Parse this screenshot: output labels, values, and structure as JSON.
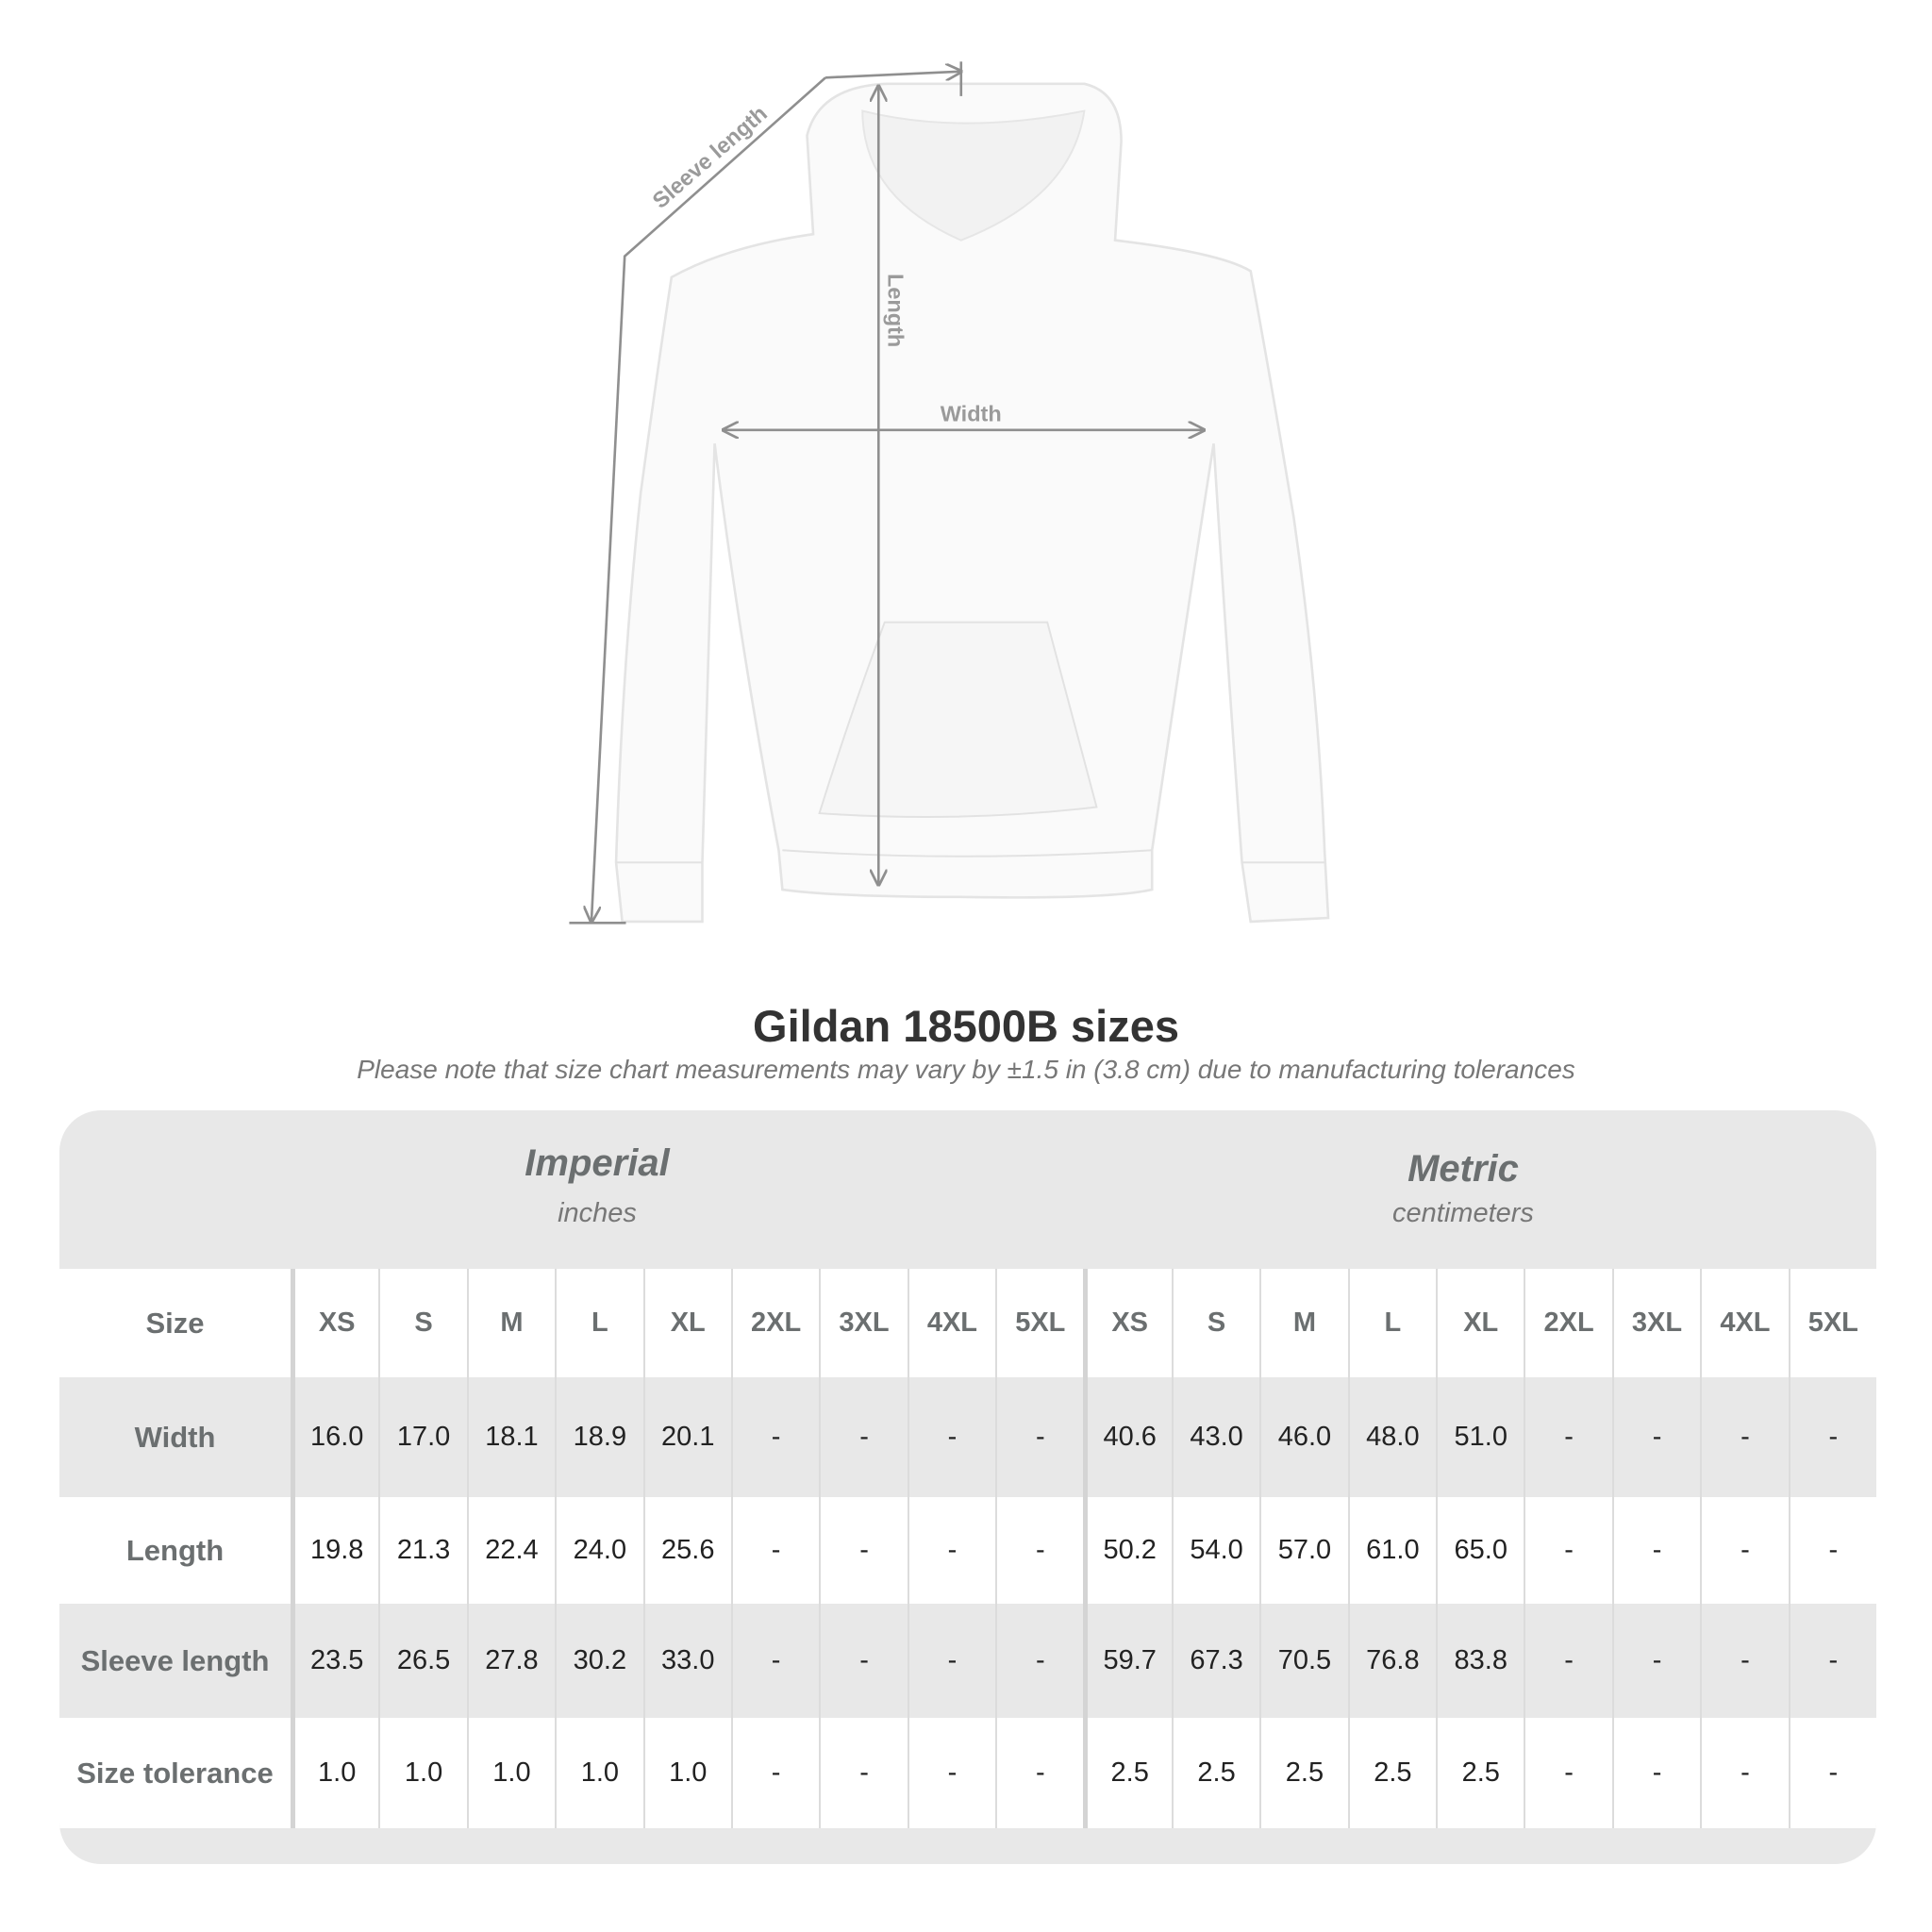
{
  "diagram": {
    "labels": {
      "sleeve_length": "Sleeve length",
      "length": "Length",
      "width": "Width"
    }
  },
  "title": "Gildan 18500B sizes",
  "subtitle": "Please note that size chart measurements may vary by ±1.5 in (3.8 cm) due to manufacturing tolerances",
  "imperial": {
    "heading": "Imperial",
    "unit": "inches"
  },
  "metric": {
    "heading": "Metric",
    "unit": "centimeters"
  },
  "table": {
    "size_label": "Size",
    "sizes": [
      "XS",
      "S",
      "M",
      "L",
      "XL",
      "2XL",
      "3XL",
      "4XL",
      "5XL"
    ],
    "rows": [
      {
        "label": "Width",
        "imperial": [
          "16.0",
          "17.0",
          "18.1",
          "18.9",
          "20.1",
          "-",
          "-",
          "-",
          "-"
        ],
        "metric": [
          "40.6",
          "43.0",
          "46.0",
          "48.0",
          "51.0",
          "-",
          "-",
          "-",
          "-"
        ]
      },
      {
        "label": "Length",
        "imperial": [
          "19.8",
          "21.3",
          "22.4",
          "24.0",
          "25.6",
          "-",
          "-",
          "-",
          "-"
        ],
        "metric": [
          "50.2",
          "54.0",
          "57.0",
          "61.0",
          "65.0",
          "-",
          "-",
          "-",
          "-"
        ]
      },
      {
        "label": "Sleeve length",
        "imperial": [
          "23.5",
          "26.5",
          "27.8",
          "30.2",
          "33.0",
          "-",
          "-",
          "-",
          "-"
        ],
        "metric": [
          "59.7",
          "67.3",
          "70.5",
          "76.8",
          "83.8",
          "-",
          "-",
          "-",
          "-"
        ]
      },
      {
        "label": "Size tolerance",
        "imperial": [
          "1.0",
          "1.0",
          "1.0",
          "1.0",
          "1.0",
          "-",
          "-",
          "-",
          "-"
        ],
        "metric": [
          "2.5",
          "2.5",
          "2.5",
          "2.5",
          "2.5",
          "-",
          "-",
          "-",
          "-"
        ]
      }
    ]
  },
  "colors": {
    "band": "#e8e8e8",
    "header_text": "#6b6f70",
    "value_text": "#222222",
    "measure_line": "#8f8f8f"
  }
}
